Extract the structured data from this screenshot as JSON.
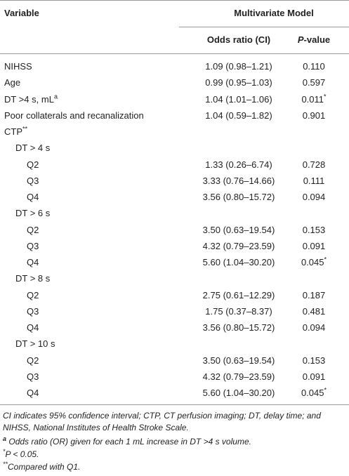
{
  "header": {
    "variable": "Variable",
    "model": "Multivariate Model",
    "odds": "Odds ratio (CI)",
    "p_italic": "P",
    "p_rest": "-value"
  },
  "rows": [
    {
      "label": "NIHSS",
      "odds": "1.09 (0.98–1.21)",
      "p": "0.110"
    },
    {
      "label": "Age",
      "odds": "0.99 (0.95–1.03)",
      "p": "0.597"
    },
    {
      "label": "DT >4 s, mL",
      "label_sup": "a",
      "odds": "1.04 (1.01–1.06)",
      "p": "0.011",
      "p_sup": "*"
    },
    {
      "label": "Poor collaterals and recanalization",
      "odds": "1.04 (0.59–1.82)",
      "p": "0.901"
    },
    {
      "label": "CTP",
      "label_sup": "**",
      "groups": [
        {
          "label": "DT > 4 s",
          "rows": [
            {
              "label": "Q2",
              "odds": "1.33 (0.26–6.74)",
              "p": "0.728"
            },
            {
              "label": "Q3",
              "odds": "3.33 (0.76–14.66)",
              "p": "0.111"
            },
            {
              "label": "Q4",
              "odds": "3.56 (0.80–15.72)",
              "p": "0.094"
            }
          ]
        },
        {
          "label": "DT > 6 s",
          "rows": [
            {
              "label": "Q2",
              "odds": "3.50 (0.63–19.54)",
              "p": "0.153"
            },
            {
              "label": "Q3",
              "odds": "4.32 (0.79–23.59)",
              "p": "0.091"
            },
            {
              "label": "Q4",
              "odds": "5.60 (1.04–30.20)",
              "p": "0.045",
              "p_sup": "*"
            }
          ]
        },
        {
          "label": "DT > 8 s",
          "rows": [
            {
              "label": "Q2",
              "odds": "2.75 (0.61–12.29)",
              "p": "0.187"
            },
            {
              "label": "Q3",
              "odds": "1.75 (0.37–8.37)",
              "p": "0.481"
            },
            {
              "label": "Q4",
              "odds": "3.56 (0.80–15.72)",
              "p": "0.094"
            }
          ]
        },
        {
          "label": "DT > 10 s",
          "rows": [
            {
              "label": "Q2",
              "odds": "3.50 (0.63–19.54)",
              "p": "0.153"
            },
            {
              "label": "Q3",
              "odds": "4.32 (0.79–23.59)",
              "p": "0.091"
            },
            {
              "label": "Q4",
              "odds": "5.60 (1.04–30.20)",
              "p": "0.045",
              "p_sup": "*"
            }
          ]
        }
      ]
    }
  ],
  "notes": {
    "abbreviations": "CI indicates 95% confidence interval; CTP, CT perfusion imaging; DT, delay time; and NIHSS, National Institutes of Health Stroke Scale.",
    "a": {
      "mark": "a",
      "text": "Odds ratio (OR) given for each 1 mL increase in DT >4 s volume."
    },
    "p": {
      "mark": "*",
      "italic": "P",
      "text": " < 0.05."
    },
    "q": {
      "mark": "**",
      "text": "Compared with Q1."
    }
  }
}
